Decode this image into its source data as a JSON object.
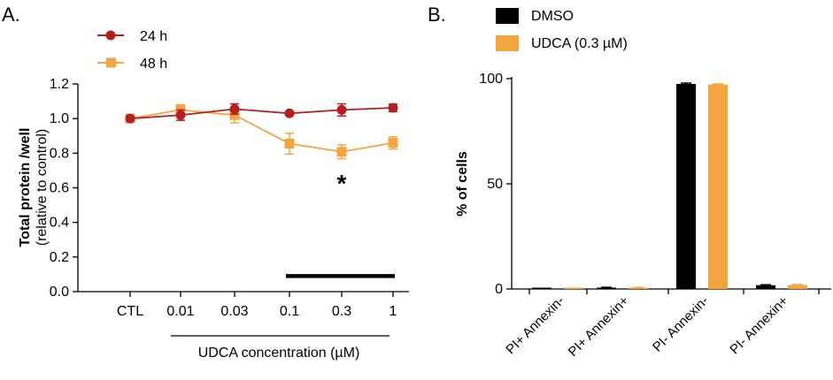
{
  "colors": {
    "h24": "#b5201f",
    "h48": "#f4a53e",
    "dmso": "#000000",
    "udca": "#f4a53e"
  },
  "chart_data": [
    {
      "panel_label": "A.",
      "type": "line",
      "categories": [
        "CTL",
        "0.01",
        "0.03",
        "0.1",
        "0.3",
        "1"
      ],
      "ylabel": "Total protein /well",
      "ylabel_sub": "(relative to control)",
      "xlabel": "UDCA concentration (µM)",
      "ylim": [
        0,
        1.2
      ],
      "yticks": [
        "0.0",
        "0.2",
        "0.4",
        "0.6",
        "0.8",
        "1.0",
        "1.2"
      ],
      "series": [
        {
          "name": "24 h",
          "values": [
            1.0,
            1.02,
            1.055,
            1.03,
            1.05,
            1.062
          ],
          "errors": [
            0.012,
            0.03,
            0.03,
            0.012,
            0.035,
            0.022
          ]
        },
        {
          "name": "48 h",
          "values": [
            1.0,
            1.05,
            1.02,
            0.855,
            0.808,
            0.86
          ],
          "errors": [
            0.012,
            0.03,
            0.045,
            0.06,
            0.04,
            0.035
          ]
        }
      ],
      "annotations": [
        {
          "text": "*",
          "category": "0.3",
          "y": 0.66
        }
      ],
      "bar_annotation": {
        "from": "0.1",
        "to": "1",
        "y": 0.09
      }
    },
    {
      "panel_label": "B.",
      "type": "bar",
      "categories": [
        "PI+ Annexin-",
        "PI+ Annexin+",
        "PI- Annexin-",
        "PI- Annexin+"
      ],
      "ylabel": "% of cells",
      "ylim": [
        0,
        100
      ],
      "yticks": [
        "0",
        "50",
        "100"
      ],
      "series": [
        {
          "name": "DMSO",
          "values": [
            0.2,
            0.6,
            97.5,
            1.8
          ],
          "errors": [
            0.1,
            0.2,
            0.4,
            0.2
          ]
        },
        {
          "name": "UDCA (0.3 µM)",
          "values": [
            0.2,
            0.5,
            97.2,
            1.9
          ],
          "errors": [
            0.1,
            0.2,
            0.3,
            0.2
          ]
        }
      ]
    }
  ]
}
